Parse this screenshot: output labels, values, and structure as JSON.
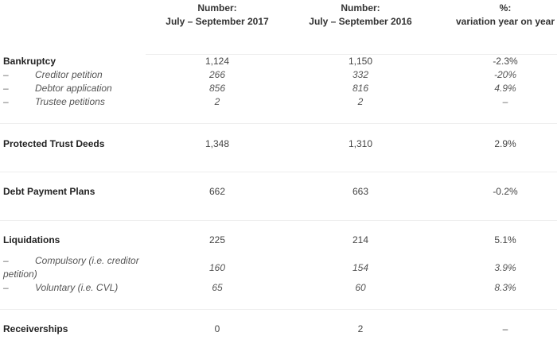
{
  "headers": [
    {
      "l1": "Number:",
      "l2": "July – September 2017"
    },
    {
      "l1": "Number:",
      "l2": "July – September 2016"
    },
    {
      "l1": "%:",
      "l2": "variation year on year"
    }
  ],
  "rows": [
    {
      "label": "Bankruptcy",
      "v": [
        "1,124",
        "1,150",
        "-2.3%"
      ]
    },
    {
      "dash": "–",
      "label": "Creditor petition",
      "v": [
        "266",
        "332",
        "-20%"
      ]
    },
    {
      "dash": "–",
      "label": "Debtor application",
      "v": [
        "856",
        "816",
        "4.9%"
      ]
    },
    {
      "dash": "–",
      "label": "Trustee petitions",
      "v": [
        "2",
        "2",
        "–"
      ]
    },
    {
      "label": "Protected Trust Deeds",
      "v": [
        "1,348",
        "1,310",
        "2.9%"
      ]
    },
    {
      "label": "Debt Payment Plans",
      "v": [
        "662",
        "663",
        "-0.2%"
      ]
    },
    {
      "label": "Liquidations",
      "v": [
        "225",
        "214",
        "5.1%"
      ]
    },
    {
      "dash": "–",
      "label": "Compulsory (i.e. creditor",
      "label2": "petition)",
      "v": [
        "160",
        "154",
        "3.9%"
      ]
    },
    {
      "dash": "–",
      "label": "Voluntary (i.e. CVL)",
      "v": [
        "65",
        "60",
        "8.3%"
      ]
    },
    {
      "label": "Receiverships",
      "v": [
        "0",
        "2",
        "–"
      ]
    }
  ]
}
